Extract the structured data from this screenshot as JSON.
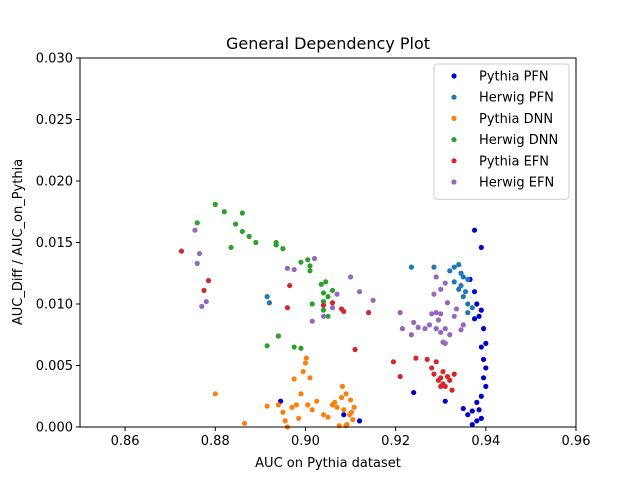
{
  "chart_data": {
    "type": "scatter",
    "title": "General Dependency Plot",
    "xlabel": "AUC on Pythia dataset",
    "ylabel": "AUC_Diff / AUC_on_Pythia",
    "xlim": [
      0.85,
      0.96
    ],
    "ylim": [
      0.0,
      0.03
    ],
    "xticks": [
      "0.86",
      "0.88",
      "0.90",
      "0.92",
      "0.94",
      "0.96"
    ],
    "yticks": [
      "0.000",
      "0.005",
      "0.010",
      "0.015",
      "0.020",
      "0.025",
      "0.030"
    ],
    "grid": false,
    "legend_position": "top-right",
    "series": [
      {
        "name": "Pythia PFN",
        "color": "#0000cd",
        "points": [
          [
            0.9375,
            0.016
          ],
          [
            0.939,
            0.0146
          ],
          [
            0.9365,
            0.012
          ],
          [
            0.9375,
            0.011
          ],
          [
            0.938,
            0.01
          ],
          [
            0.939,
            0.0095
          ],
          [
            0.9385,
            0.009
          ],
          [
            0.9375,
            0.0088
          ],
          [
            0.9395,
            0.008
          ],
          [
            0.94,
            0.0068
          ],
          [
            0.939,
            0.0065
          ],
          [
            0.9395,
            0.0055
          ],
          [
            0.94,
            0.0048
          ],
          [
            0.9395,
            0.004
          ],
          [
            0.94,
            0.0033
          ],
          [
            0.939,
            0.0025
          ],
          [
            0.938,
            0.002
          ],
          [
            0.9385,
            0.0014
          ],
          [
            0.937,
            0.0013
          ],
          [
            0.936,
            0.001
          ],
          [
            0.939,
            0.0007
          ],
          [
            0.938,
            0.0005
          ],
          [
            0.937,
            0.0002
          ],
          [
            0.935,
            0.0015
          ],
          [
            0.931,
            0.0021
          ],
          [
            0.924,
            0.0028
          ],
          [
            0.8945,
            0.0021
          ],
          [
            0.9085,
            0.001
          ],
          [
            0.912,
            0.0005
          ]
        ]
      },
      {
        "name": "Herwig PFN",
        "color": "#1f77b4",
        "points": [
          [
            0.9235,
            0.013
          ],
          [
            0.9285,
            0.013
          ],
          [
            0.933,
            0.013
          ],
          [
            0.934,
            0.0132
          ],
          [
            0.932,
            0.0127
          ],
          [
            0.9345,
            0.0125
          ],
          [
            0.935,
            0.0122
          ],
          [
            0.936,
            0.012
          ],
          [
            0.933,
            0.0118
          ],
          [
            0.9345,
            0.0115
          ],
          [
            0.934,
            0.0112
          ],
          [
            0.9355,
            0.011
          ],
          [
            0.935,
            0.0106
          ],
          [
            0.936,
            0.01
          ],
          [
            0.937,
            0.0097
          ],
          [
            0.936,
            0.0093
          ],
          [
            0.8915,
            0.0106
          ],
          [
            0.892,
            0.0101
          ]
        ]
      },
      {
        "name": "Pythia DNN",
        "color": "#ff7f0e",
        "points": [
          [
            0.88,
            0.0027
          ],
          [
            0.8865,
            0.0003
          ],
          [
            0.8915,
            0.0017
          ],
          [
            0.894,
            0.0018
          ],
          [
            0.895,
            0.0012
          ],
          [
            0.8955,
            0.0005
          ],
          [
            0.896,
            0.0
          ],
          [
            0.897,
            0.0016
          ],
          [
            0.8975,
            0.0039
          ],
          [
            0.898,
            0.0018
          ],
          [
            0.8985,
            0.0007
          ],
          [
            0.899,
            0.0027
          ],
          [
            0.8995,
            0.0045
          ],
          [
            0.9,
            0.0052
          ],
          [
            0.9002,
            0.0056
          ],
          [
            0.9005,
            0.0018
          ],
          [
            0.901,
            0.004
          ],
          [
            0.9015,
            0.0014
          ],
          [
            0.9025,
            0.0021
          ],
          [
            0.904,
            0.001
          ],
          [
            0.905,
            0.0008
          ],
          [
            0.906,
            0.0018
          ],
          [
            0.9065,
            0.002
          ],
          [
            0.907,
            0.0016
          ],
          [
            0.9075,
            0.0001
          ],
          [
            0.908,
            0.0024
          ],
          [
            0.9082,
            0.0033
          ],
          [
            0.9085,
            0.0014
          ],
          [
            0.909,
            0.0027
          ],
          [
            0.9092,
            0.0002
          ],
          [
            0.9098,
            0.001
          ],
          [
            0.91,
            0.0022
          ],
          [
            0.9102,
            0.0012
          ],
          [
            0.9105,
            0.0006
          ],
          [
            0.9108,
            0.0016
          ],
          [
            0.909,
            0.0001
          ]
        ]
      },
      {
        "name": "Herwig DNN",
        "color": "#2ca02c",
        "points": [
          [
            0.88,
            0.0181
          ],
          [
            0.882,
            0.0175
          ],
          [
            0.8845,
            0.0165
          ],
          [
            0.886,
            0.0174
          ],
          [
            0.886,
            0.0159
          ],
          [
            0.8875,
            0.0155
          ],
          [
            0.889,
            0.015
          ],
          [
            0.8935,
            0.015
          ],
          [
            0.8935,
            0.0148
          ],
          [
            0.895,
            0.0145
          ],
          [
            0.8835,
            0.0146
          ],
          [
            0.876,
            0.0166
          ],
          [
            0.899,
            0.0134
          ],
          [
            0.9005,
            0.0136
          ],
          [
            0.901,
            0.0131
          ],
          [
            0.901,
            0.0127
          ],
          [
            0.9035,
            0.0116
          ],
          [
            0.9045,
            0.0118
          ],
          [
            0.904,
            0.0109
          ],
          [
            0.905,
            0.0106
          ],
          [
            0.906,
            0.0111
          ],
          [
            0.904,
            0.0102
          ],
          [
            0.904,
            0.0095
          ],
          [
            0.905,
            0.009
          ],
          [
            0.9015,
            0.01
          ],
          [
            0.8915,
            0.0066
          ],
          [
            0.894,
            0.0074
          ],
          [
            0.8975,
            0.0065
          ],
          [
            0.899,
            0.0064
          ]
        ]
      },
      {
        "name": "Pythia EFN",
        "color": "#d62728",
        "points": [
          [
            0.8725,
            0.0143
          ],
          [
            0.8785,
            0.0119
          ],
          [
            0.8775,
            0.0111
          ],
          [
            0.8965,
            0.0115
          ],
          [
            0.896,
            0.0097
          ],
          [
            0.904,
            0.0099
          ],
          [
            0.906,
            0.0101
          ],
          [
            0.908,
            0.0096
          ],
          [
            0.9085,
            0.0094
          ],
          [
            0.911,
            0.0063
          ],
          [
            0.914,
            0.0093
          ],
          [
            0.9195,
            0.0053
          ],
          [
            0.921,
            0.0041
          ],
          [
            0.9245,
            0.0056
          ],
          [
            0.927,
            0.0055
          ],
          [
            0.928,
            0.0048
          ],
          [
            0.929,
            0.0053
          ],
          [
            0.9285,
            0.0043
          ],
          [
            0.9295,
            0.0038
          ],
          [
            0.93,
            0.004
          ],
          [
            0.9305,
            0.0035
          ],
          [
            0.931,
            0.0033
          ],
          [
            0.9315,
            0.0041
          ],
          [
            0.932,
            0.0038
          ],
          [
            0.9325,
            0.003
          ],
          [
            0.933,
            0.0043
          ],
          [
            0.9305,
            0.0045
          ],
          [
            0.93,
            0.0033
          ]
        ]
      },
      {
        "name": "Herwig EFN",
        "color": "#9467bd",
        "points": [
          [
            0.8755,
            0.016
          ],
          [
            0.876,
            0.0133
          ],
          [
            0.8765,
            0.0141
          ],
          [
            0.877,
            0.0098
          ],
          [
            0.878,
            0.0102
          ],
          [
            0.896,
            0.0129
          ],
          [
            0.8975,
            0.0128
          ],
          [
            0.902,
            0.0137
          ],
          [
            0.9015,
            0.0086
          ],
          [
            0.904,
            0.009
          ],
          [
            0.906,
            0.0097
          ],
          [
            0.907,
            0.0108
          ],
          [
            0.91,
            0.0122
          ],
          [
            0.912,
            0.011
          ],
          [
            0.915,
            0.0103
          ],
          [
            0.921,
            0.0093
          ],
          [
            0.9215,
            0.008
          ],
          [
            0.9235,
            0.0075
          ],
          [
            0.924,
            0.0085
          ],
          [
            0.925,
            0.0081
          ],
          [
            0.9265,
            0.008
          ],
          [
            0.9275,
            0.0083
          ],
          [
            0.928,
            0.0092
          ],
          [
            0.929,
            0.0093
          ],
          [
            0.9295,
            0.0087
          ],
          [
            0.929,
            0.008
          ],
          [
            0.93,
            0.0077
          ],
          [
            0.9305,
            0.0069
          ],
          [
            0.931,
            0.008
          ],
          [
            0.932,
            0.0075
          ],
          [
            0.933,
            0.009
          ],
          [
            0.9335,
            0.0096
          ],
          [
            0.9345,
            0.0079
          ],
          [
            0.935,
            0.0083
          ],
          [
            0.93,
            0.0092
          ],
          [
            0.9315,
            0.0101
          ],
          [
            0.9285,
            0.0108
          ],
          [
            0.93,
            0.0112
          ],
          [
            0.931,
            0.0117
          ],
          [
            0.929,
            0.0122
          ],
          [
            0.931,
            0.0068
          ]
        ]
      }
    ]
  }
}
